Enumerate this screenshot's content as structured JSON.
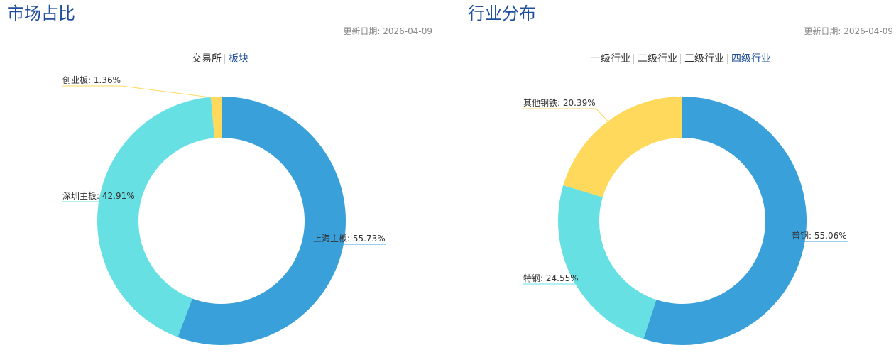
{
  "market_panel": {
    "title": "市场占比",
    "update_date": "更新日期: 2026-04-09",
    "tabs": [
      {
        "label": "交易所",
        "active": false
      },
      {
        "label": "板块",
        "active": true
      }
    ]
  },
  "industry_panel": {
    "title": "行业分布",
    "update_date": "更新日期: 2026-04-09",
    "tabs": [
      {
        "label": "一级行业",
        "active": false
      },
      {
        "label": "二级行业",
        "active": false
      },
      {
        "label": "三级行业",
        "active": false
      },
      {
        "label": "四级行业",
        "active": true
      }
    ]
  },
  "colors": {
    "title": "#1f4e9c",
    "slice_blue": "#3aa0da",
    "slice_cyan": "#66e0e3",
    "slice_yellow": "#fed95c"
  },
  "chart_data": [
    {
      "type": "pie",
      "donut": true,
      "slices": [
        {
          "label": "上海主板",
          "value": 55.73,
          "display": "上海主板: 55.73%",
          "color": "#3aa0da"
        },
        {
          "label": "深圳主板",
          "value": 42.91,
          "display": "深圳主板: 42.91%",
          "color": "#66e0e3"
        },
        {
          "label": "创业板",
          "value": 1.36,
          "display": "创业板: 1.36%",
          "color": "#fed95c"
        }
      ]
    },
    {
      "type": "pie",
      "donut": true,
      "slices": [
        {
          "label": "普钢",
          "value": 55.06,
          "display": "普钢: 55.06%",
          "color": "#3aa0da"
        },
        {
          "label": "特钢",
          "value": 24.55,
          "display": "特钢: 24.55%",
          "color": "#66e0e3"
        },
        {
          "label": "其他钢铁",
          "value": 20.39,
          "display": "其他钢铁: 20.39%",
          "color": "#fed95c"
        }
      ]
    }
  ]
}
